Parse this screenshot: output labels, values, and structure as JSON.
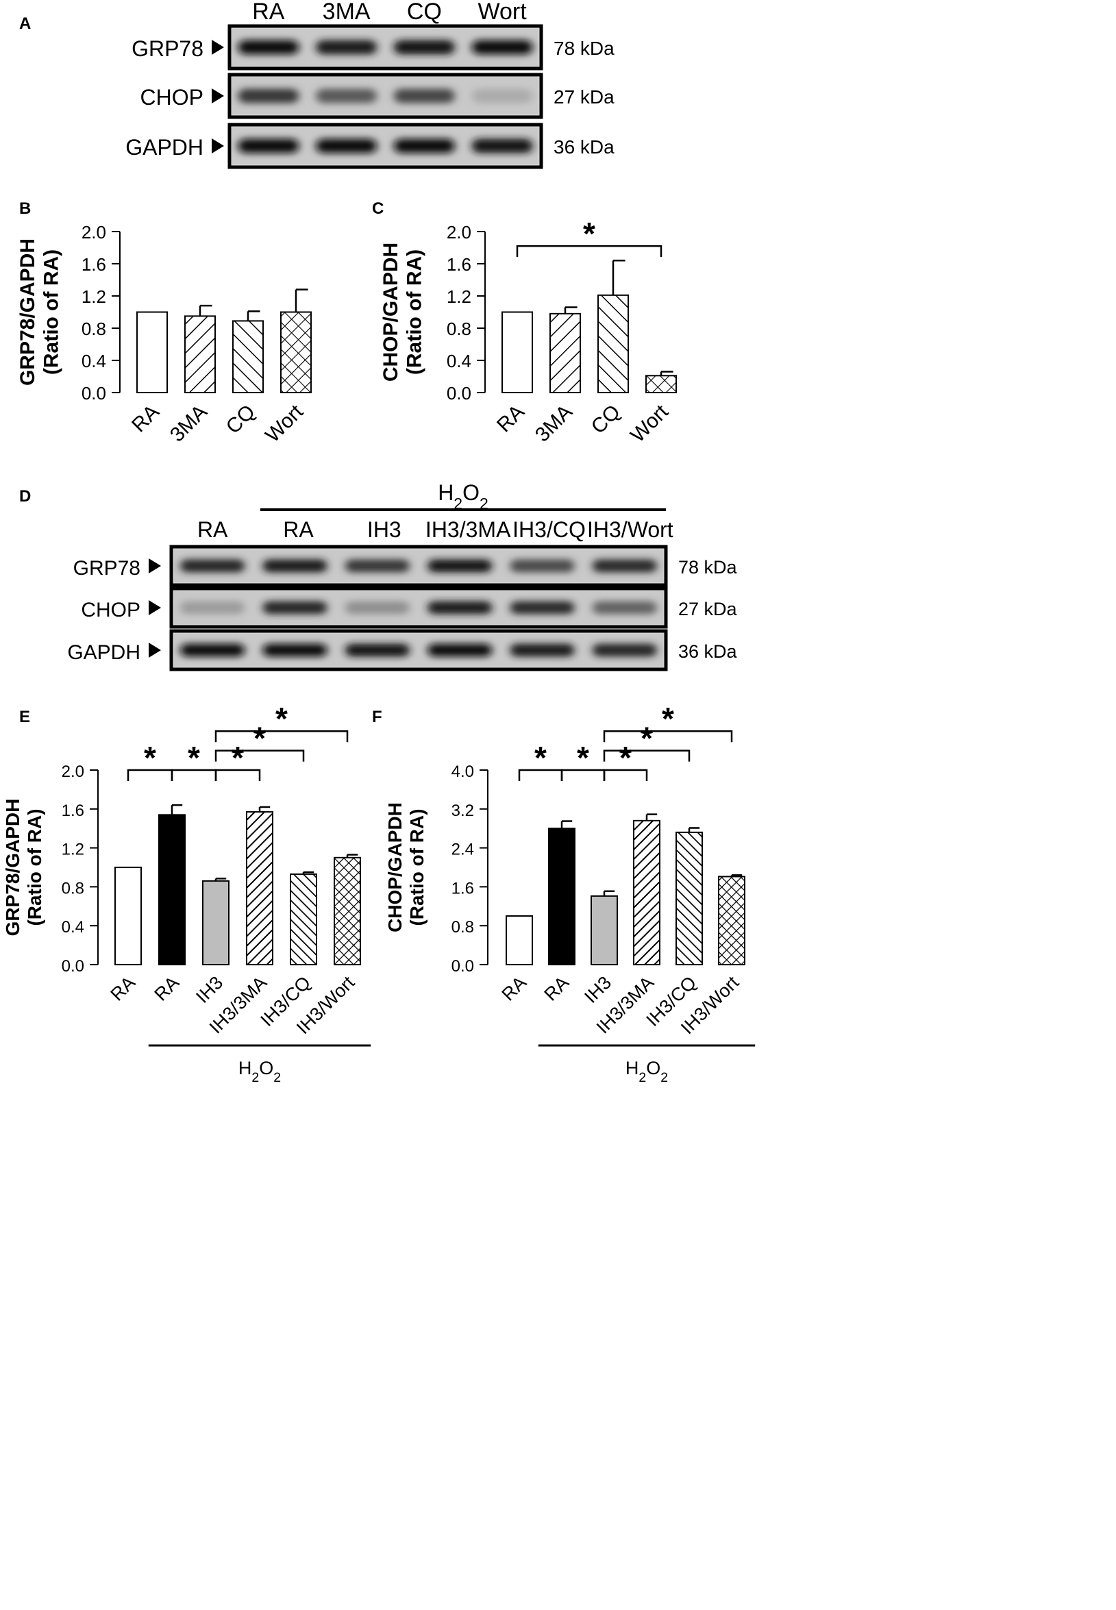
{
  "panels": {
    "A": {
      "letter": "A",
      "lanes": [
        "RA",
        "3MA",
        "CQ",
        "Wort"
      ],
      "blots": [
        {
          "protein": "GRP78",
          "mw": "78 kDa",
          "intensity": [
            0.92,
            0.85,
            0.9,
            0.92
          ]
        },
        {
          "protein": "CHOP",
          "mw": "27 kDa",
          "intensity": [
            0.72,
            0.55,
            0.65,
            0.14
          ]
        },
        {
          "protein": "GAPDH",
          "mw": "36 kDa",
          "intensity": [
            0.96,
            0.93,
            0.95,
            0.88
          ]
        }
      ]
    },
    "D": {
      "letter": "D",
      "group_label": "H₂O₂",
      "lanes": [
        "RA",
        "RA",
        "IH3",
        "IH3/3MA",
        "IH3/CQ",
        "IH3/Wort"
      ],
      "blots": [
        {
          "protein": "GRP78",
          "mw": "78 kDa",
          "intensity": [
            0.8,
            0.86,
            0.72,
            0.9,
            0.62,
            0.78
          ]
        },
        {
          "protein": "CHOP",
          "mw": "27 kDa",
          "intensity": [
            0.22,
            0.8,
            0.28,
            0.85,
            0.78,
            0.5
          ]
        },
        {
          "protein": "GAPDH",
          "mw": "36 kDa",
          "intensity": [
            0.93,
            0.95,
            0.9,
            0.95,
            0.85,
            0.8
          ]
        }
      ]
    }
  },
  "chart_data": [
    {
      "panel": "B",
      "type": "bar",
      "ylabel_line1": "GRP78/GAPDH",
      "ylabel_line2": "(Ratio of RA)",
      "categories": [
        "RA",
        "3MA",
        "CQ",
        "Wort"
      ],
      "values": [
        1.0,
        0.95,
        0.89,
        1.0
      ],
      "errors": [
        0,
        0.13,
        0.12,
        0.28
      ],
      "fills": [
        "open",
        "diag-right",
        "diag-left",
        "cross"
      ],
      "ylim": [
        0,
        2.0
      ],
      "yticks": [
        "0.0",
        "0.4",
        "0.8",
        "1.2",
        "1.6",
        "2.0"
      ],
      "significance": []
    },
    {
      "panel": "C",
      "type": "bar",
      "ylabel_line1": "CHOP/GAPDH",
      "ylabel_line2": "(Ratio of RA)",
      "categories": [
        "RA",
        "3MA",
        "CQ",
        "Wort"
      ],
      "values": [
        1.0,
        0.98,
        1.21,
        0.21
      ],
      "errors": [
        0,
        0.08,
        0.43,
        0.05
      ],
      "fills": [
        "open",
        "diag-right",
        "diag-left",
        "cross"
      ],
      "ylim": [
        0,
        2.0
      ],
      "yticks": [
        "0.0",
        "0.4",
        "0.8",
        "1.2",
        "1.6",
        "2.0"
      ],
      "significance": [
        {
          "from": 0,
          "to": 3,
          "y": 1.82,
          "mark": "*"
        }
      ]
    },
    {
      "panel": "E",
      "type": "bar",
      "ylabel_line1": "GRP78/GAPDH",
      "ylabel_line2": "(Ratio of RA)",
      "categories": [
        "RA",
        "RA",
        "IH3",
        "IH3/3MA",
        "IH3/CQ",
        "IH3/Wort"
      ],
      "values": [
        1.0,
        1.54,
        0.86,
        1.57,
        0.93,
        1.1
      ],
      "errors": [
        0,
        0.1,
        0.025,
        0.05,
        0.02,
        0.03
      ],
      "fills": [
        "open",
        "black",
        "gray",
        "diag-right",
        "diag-left",
        "cross"
      ],
      "ylim": [
        0,
        2.0
      ],
      "yticks": [
        "0.0",
        "0.4",
        "0.8",
        "1.2",
        "1.6",
        "2.0"
      ],
      "group_label": "H₂O₂",
      "significance": [
        {
          "from": 0,
          "to": 1,
          "y": 2.0,
          "mark": "*"
        },
        {
          "from": 1,
          "to": 2,
          "y": 2.0,
          "mark": "*"
        },
        {
          "from": 2,
          "to": 3,
          "y": 2.0,
          "mark": "*"
        },
        {
          "from": 2,
          "to": 4,
          "y": 2.2,
          "mark": "*"
        },
        {
          "from": 2,
          "to": 5,
          "y": 2.4,
          "mark": "*"
        }
      ]
    },
    {
      "panel": "F",
      "type": "bar",
      "ylabel_line1": "CHOP/GAPDH",
      "ylabel_line2": "(Ratio of RA)",
      "categories": [
        "RA",
        "RA",
        "IH3",
        "IH3/3MA",
        "IH3/CQ",
        "IH3/Wort"
      ],
      "values": [
        1.0,
        2.8,
        1.41,
        2.96,
        2.72,
        1.81
      ],
      "errors": [
        0,
        0.15,
        0.1,
        0.13,
        0.09,
        0.03
      ],
      "fills": [
        "open",
        "black",
        "gray",
        "diag-right",
        "diag-left",
        "cross"
      ],
      "ylim": [
        0,
        4.0
      ],
      "yticks": [
        "0.0",
        "0.8",
        "1.6",
        "2.4",
        "3.2",
        "4.0"
      ],
      "group_label": "H₂O₂",
      "significance": [
        {
          "from": 0,
          "to": 1,
          "y": 4.0,
          "mark": "*"
        },
        {
          "from": 1,
          "to": 2,
          "y": 4.0,
          "mark": "*"
        },
        {
          "from": 2,
          "to": 3,
          "y": 4.0,
          "mark": "*"
        },
        {
          "from": 2,
          "to": 4,
          "y": 4.4,
          "mark": "*"
        },
        {
          "from": 2,
          "to": 5,
          "y": 4.8,
          "mark": "*"
        }
      ]
    }
  ]
}
